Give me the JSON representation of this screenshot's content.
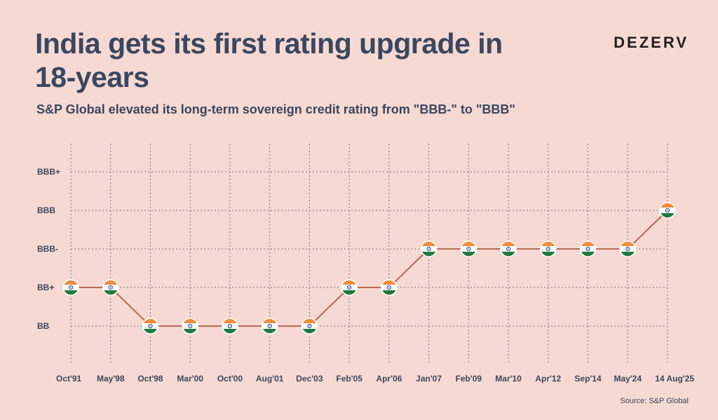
{
  "header": {
    "title": "India gets its first rating upgrade in 18-years",
    "subtitle": "S&P Global elevated its long-term sovereign credit rating from \"BBB-\" to \"BBB\"",
    "logo": "DEZERV"
  },
  "footer": {
    "source": "Source: S&P Global"
  },
  "colors": {
    "background": "#f6d9d2",
    "line": "#b96a55",
    "grid": "#7a7a7a",
    "text": "#3a4760",
    "flag_saffron": "#f08c3c",
    "flag_green": "#1f7a3c",
    "flag_chakra": "#1d3f8f"
  },
  "chart_data": {
    "type": "line",
    "categories": [
      "Oct'91",
      "May'98",
      "Oct'98",
      "Mar'00",
      "Oct'00",
      "Aug'01",
      "Dec'03",
      "Feb'05",
      "Apr'06",
      "Jan'07",
      "Feb'09",
      "Mar'10",
      "Apr'12",
      "Sep'14",
      "May'24",
      "14 Aug'25"
    ],
    "y_categories": [
      "BB",
      "BB+",
      "BBB-",
      "BBB",
      "BBB+"
    ],
    "values": [
      "BB+",
      "BB+",
      "BB",
      "BB",
      "BB",
      "BB",
      "BB",
      "BB+",
      "BB+",
      "BBB-",
      "BBB-",
      "BBB-",
      "BBB-",
      "BBB-",
      "BBB-",
      "BBB"
    ],
    "marker": "india-flag-icon",
    "grid": true
  }
}
